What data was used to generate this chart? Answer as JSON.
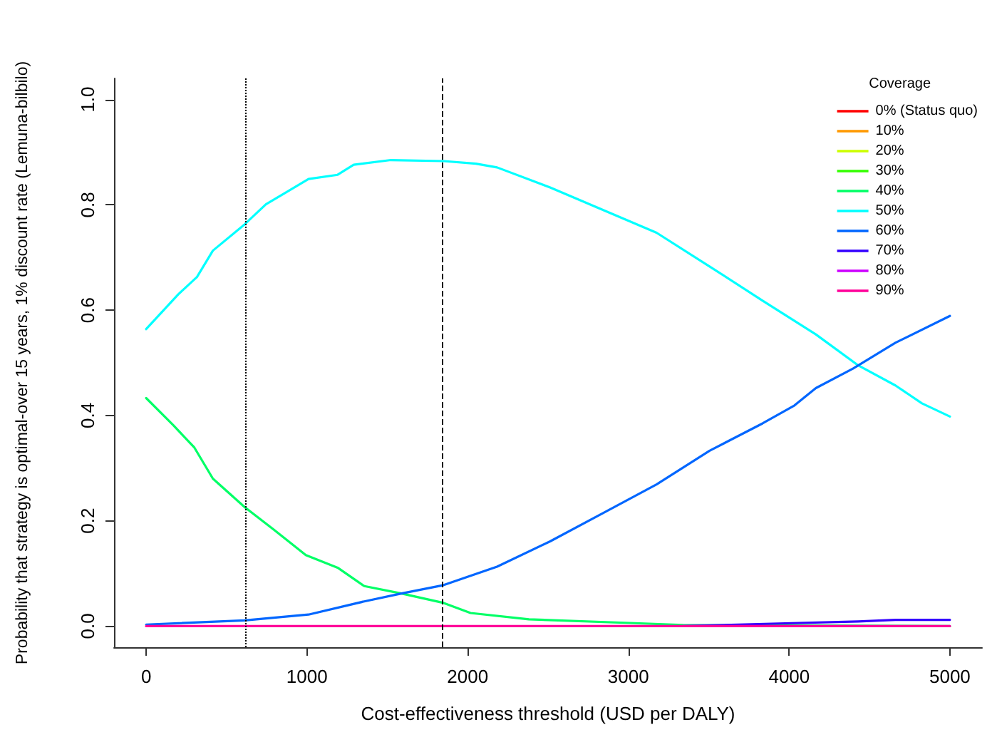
{
  "chart_data": {
    "type": "line",
    "xlabel": "Cost-effectiveness threshold (USD per DALY)",
    "ylabel": "Probability that strategy is optimal-over 15 years, 1% discount rate (Lemuna-bilbilo)",
    "legend_title": "Coverage",
    "legend": "top right",
    "grid": false,
    "marker": "none",
    "line_style": "solid",
    "xlim": [
      -200,
      5200
    ],
    "xticks": [
      0,
      1000,
      2000,
      3000,
      4000,
      5000
    ],
    "ylim": [
      -0.04,
      1.04
    ],
    "yticks": [
      {
        "value": 0,
        "label": "0.0"
      },
      {
        "value": 0.2,
        "label": "0.2"
      },
      {
        "value": 0.4,
        "label": "0.4"
      },
      {
        "value": 0.6,
        "label": "0.6"
      },
      {
        "value": 0.8,
        "label": "0.8"
      },
      {
        "value": 1,
        "label": "1.0"
      }
    ],
    "ref_lines": [
      {
        "axis": "x",
        "value": 615,
        "line_style": "dotted",
        "color": "#000000"
      },
      {
        "axis": "x",
        "value": 1845,
        "line_style": "dashed",
        "color": "#000000"
      }
    ],
    "series": [
      {
        "name": "0% (Status quo)",
        "color": "#ff0000",
        "values": [
          null
        ]
      },
      {
        "name": "10%",
        "color": "#ff9900",
        "values": [
          null
        ]
      },
      {
        "name": "20%",
        "color": "#ccff00",
        "values": [
          null
        ]
      },
      {
        "name": "30%",
        "color": "#33ff00",
        "values": [
          null
        ]
      },
      {
        "name": "40%",
        "color": "#00ff66",
        "x": [
          0,
          167,
          300,
          415,
          613,
          795,
          993,
          1191,
          1357,
          1588,
          1851,
          2018,
          2381,
          3009,
          3340,
          5000
        ],
        "values": [
          0.433,
          0.382,
          0.339,
          0.28,
          0.226,
          0.183,
          0.135,
          0.111,
          0.076,
          0.062,
          0.044,
          0.025,
          0.013,
          0.006,
          0.002,
          0
        ]
      },
      {
        "name": "50%",
        "color": "#00ffff",
        "x": [
          0,
          200,
          316,
          415,
          613,
          745,
          861,
          1010,
          1191,
          1291,
          1522,
          1851,
          2051,
          2183,
          2513,
          2844,
          3175,
          3505,
          3835,
          4166,
          4430,
          4661,
          4826,
          5000
        ],
        "values": [
          0.564,
          0.63,
          0.663,
          0.713,
          0.763,
          0.801,
          0.822,
          0.849,
          0.857,
          0.876,
          0.885,
          0.883,
          0.878,
          0.871,
          0.833,
          0.79,
          0.747,
          0.683,
          0.618,
          0.554,
          0.495,
          0.457,
          0.423,
          0.398
        ]
      },
      {
        "name": "60%",
        "color": "#0066ff",
        "x": [
          0,
          613,
          1010,
          1357,
          1588,
          1851,
          2183,
          2513,
          2844,
          3175,
          3505,
          3835,
          4033,
          4166,
          4397,
          4661,
          5000
        ],
        "values": [
          0.003,
          0.011,
          0.022,
          0.047,
          0.062,
          0.078,
          0.113,
          0.161,
          0.215,
          0.269,
          0.333,
          0.385,
          0.419,
          0.452,
          0.489,
          0.538,
          0.589
        ]
      },
      {
        "name": "70%",
        "color": "#3300ff",
        "x": [
          3340,
          3934,
          4430,
          4661,
          5000
        ],
        "values": [
          0,
          0.005,
          0.009,
          0.012,
          0.012
        ]
      },
      {
        "name": "80%",
        "color": "#cc00ff",
        "values": [
          null
        ]
      },
      {
        "name": "90%",
        "color": "#ff0099",
        "x": [
          0,
          5000
        ],
        "values": [
          0,
          0
        ]
      }
    ]
  }
}
